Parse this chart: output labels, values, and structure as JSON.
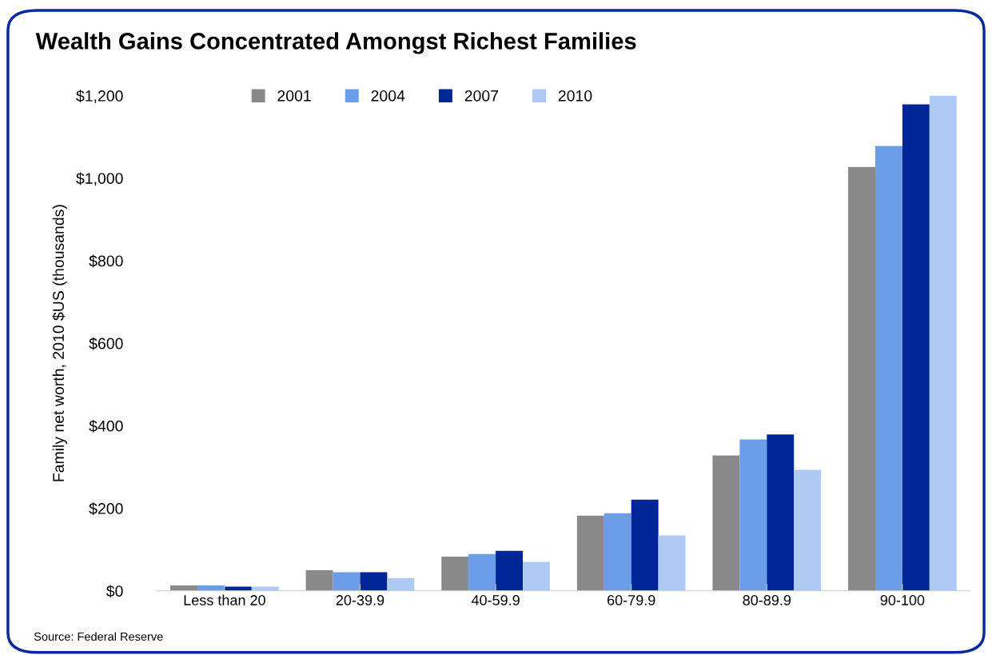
{
  "chart_data": {
    "type": "bar",
    "title": "Wealth Gains Concentrated Amongst Richest Families",
    "ylabel": "Family net worth, 2010 $US (thousands)",
    "categories": [
      "Less than 20",
      "20-39.9",
      "40-59.9",
      "60-79.9",
      "80-89.9",
      "90-100"
    ],
    "series": [
      {
        "name": "2001",
        "color": "#898989",
        "values": [
          13,
          50,
          83,
          182,
          328,
          1027
        ]
      },
      {
        "name": "2004",
        "color": "#6a9ce8",
        "values": [
          13,
          45,
          89,
          188,
          367,
          1078
        ]
      },
      {
        "name": "2007",
        "color": "#002597",
        "values": [
          10,
          45,
          97,
          221,
          379,
          1179
        ]
      },
      {
        "name": "2010",
        "color": "#adc9f4",
        "values": [
          10,
          31,
          70,
          134,
          293,
          1200
        ]
      }
    ],
    "ylim": [
      0,
      1200
    ],
    "yticks": [
      {
        "value": 0,
        "label": "$0"
      },
      {
        "value": 200,
        "label": "$200"
      },
      {
        "value": 400,
        "label": "$400"
      },
      {
        "value": 600,
        "label": "$600"
      },
      {
        "value": 800,
        "label": "$800"
      },
      {
        "value": 1000,
        "label": "$1,000"
      },
      {
        "value": 1200,
        "label": "$1,200"
      }
    ],
    "grid": false,
    "legend": "top left",
    "annotations": [
      "Source: Federal Reserve"
    ]
  }
}
